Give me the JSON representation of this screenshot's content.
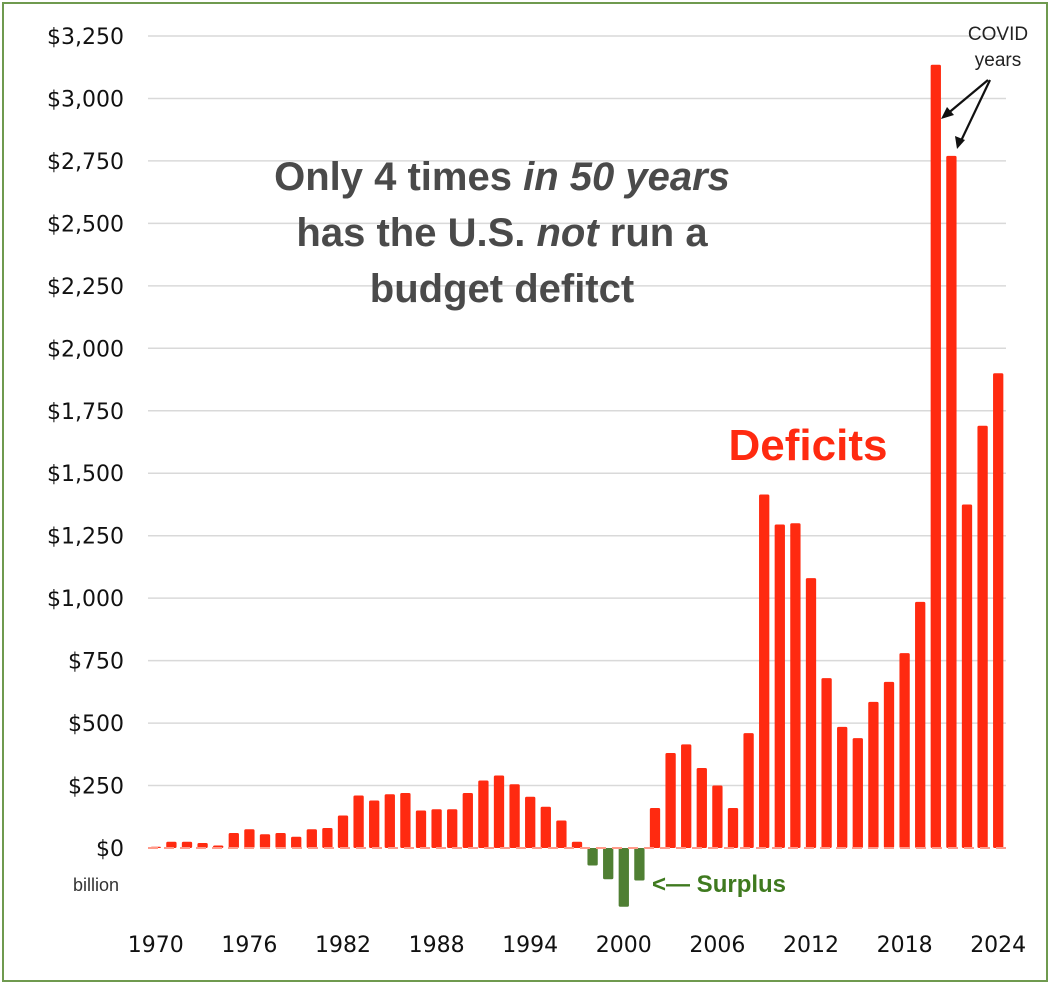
{
  "colors": {
    "deficit": "#ff2a10",
    "surplus": "#4f7f33",
    "grid": "#d9d9d9",
    "zero_line": "#ff9a8a",
    "border": "#6f9a4f"
  },
  "annotations": {
    "headline": [
      [
        {
          "text": "Only 4 times ",
          "italic": false
        },
        {
          "text": "in 50 years",
          "italic": true
        }
      ],
      [
        {
          "text": "has the U.S. ",
          "italic": false
        },
        {
          "text": "not",
          "italic": true
        },
        {
          "text": " run a",
          "italic": false
        }
      ],
      [
        {
          "text": "budget defitct",
          "italic": false
        }
      ]
    ],
    "deficits": "Deficits",
    "surplus": "<— Surplus",
    "covid_line1": "COVID",
    "covid_line2": "years",
    "unit": "billion"
  },
  "chart_data": {
    "type": "bar",
    "ylim": [
      -250,
      3250
    ],
    "grid": true,
    "y_ticks": [
      {
        "v": 3250,
        "label": "$3,250"
      },
      {
        "v": 3000,
        "label": "$3,000"
      },
      {
        "v": 2750,
        "label": "$2,750"
      },
      {
        "v": 2500,
        "label": "$2,500"
      },
      {
        "v": 2250,
        "label": "$2,250"
      },
      {
        "v": 2000,
        "label": "$2,000"
      },
      {
        "v": 1750,
        "label": "$1,750"
      },
      {
        "v": 1500,
        "label": "$1,500"
      },
      {
        "v": 1250,
        "label": "$1,250"
      },
      {
        "v": 1000,
        "label": "$1,000"
      },
      {
        "v": 750,
        "label": "$750"
      },
      {
        "v": 500,
        "label": "$500"
      },
      {
        "v": 250,
        "label": "$250"
      },
      {
        "v": 0,
        "label": "$0"
      }
    ],
    "x_ticks": [
      1970,
      1976,
      1982,
      1988,
      1994,
      2000,
      2006,
      2012,
      2018,
      2024
    ],
    "years": [
      1970,
      1971,
      1972,
      1973,
      1974,
      1975,
      1976,
      1977,
      1978,
      1979,
      1980,
      1981,
      1982,
      1983,
      1984,
      1985,
      1986,
      1987,
      1988,
      1989,
      1990,
      1991,
      1992,
      1993,
      1994,
      1995,
      1996,
      1997,
      1998,
      1999,
      2000,
      2001,
      2002,
      2003,
      2004,
      2005,
      2006,
      2007,
      2008,
      2009,
      2010,
      2011,
      2012,
      2013,
      2014,
      2015,
      2016,
      2017,
      2018,
      2019,
      2020,
      2021,
      2022,
      2023,
      2024
    ],
    "values": [
      5,
      25,
      25,
      20,
      10,
      60,
      75,
      55,
      60,
      45,
      75,
      80,
      130,
      210,
      190,
      215,
      220,
      150,
      155,
      155,
      220,
      270,
      290,
      255,
      205,
      165,
      110,
      25,
      -70,
      -125,
      -235,
      -130,
      160,
      380,
      415,
      320,
      250,
      160,
      460,
      1415,
      1295,
      1300,
      1080,
      680,
      485,
      440,
      585,
      665,
      780,
      985,
      3135,
      2770,
      1375,
      1690,
      1900
    ]
  }
}
